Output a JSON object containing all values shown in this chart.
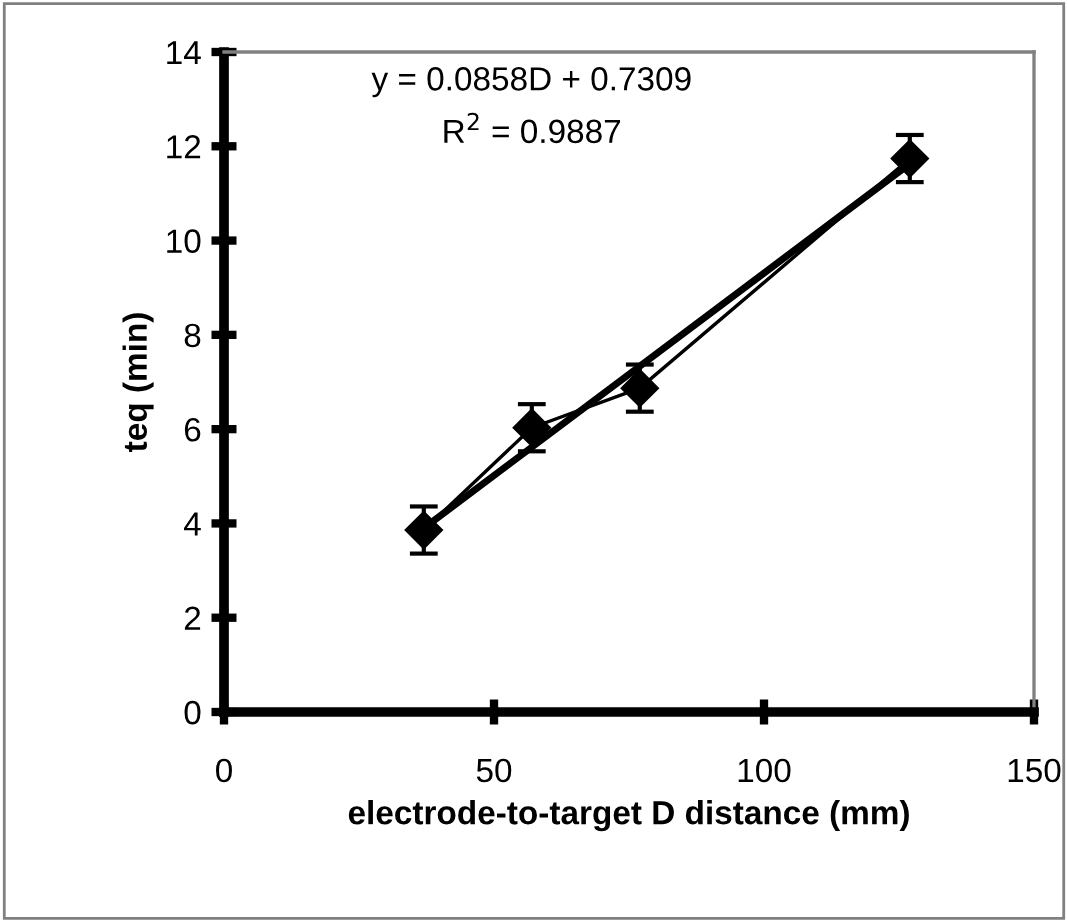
{
  "chart_data": {
    "type": "line",
    "xlabel": "electrode-to-target D distance (mm)",
    "ylabel": "teq (min)",
    "xlim": [
      0,
      150
    ],
    "xticks": [
      0,
      50,
      100,
      150
    ],
    "ylim": [
      0,
      14
    ],
    "yticks": [
      0,
      2,
      4,
      6,
      8,
      10,
      12,
      14
    ],
    "grid": false,
    "legend": false,
    "series": [
      {
        "color": "#000000",
        "x": [
          37,
          57,
          77,
          127
        ],
        "values": [
          3.86,
          6.03,
          6.87,
          11.74
        ],
        "errors": [
          0.5,
          0.5,
          0.5,
          0.5
        ],
        "marker": "diamond"
      },
      {
        "color": "#000000",
        "x": [
          37,
          127
        ],
        "values": [
          3.9,
          11.63
        ],
        "marker": "none"
      }
    ],
    "annotations": [
      "y = 0.0858D + 0.7309",
      "R$^{2}$ = 0.9887"
    ]
  }
}
